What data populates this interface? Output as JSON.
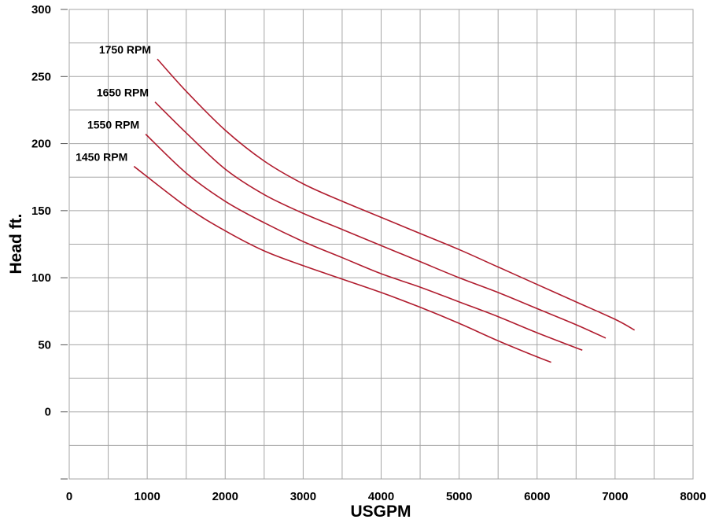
{
  "chart_data": {
    "type": "line",
    "xlabel": "USGPM",
    "ylabel": "Head ft.",
    "xlim": [
      0,
      8000
    ],
    "ylim": [
      -50,
      300
    ],
    "x_ticks": [
      "0",
      "1000",
      "2000",
      "3000",
      "4000",
      "5000",
      "6000",
      "7000",
      "8000"
    ],
    "y_ticks": [
      "0",
      "50",
      "100",
      "150",
      "200",
      "250",
      "300"
    ],
    "grid": true,
    "line_color": "#b01c2e",
    "series": [
      {
        "name": "1750 RPM",
        "x": [
          1130,
          1500,
          2000,
          2500,
          3000,
          3500,
          4000,
          4500,
          5000,
          5500,
          6000,
          6500,
          7000,
          7250
        ],
        "y": [
          263,
          239,
          210,
          187,
          170,
          157,
          145,
          133,
          121,
          108,
          95,
          82,
          69,
          61
        ]
      },
      {
        "name": "1650 RPM",
        "x": [
          1100,
          1500,
          2000,
          2500,
          3000,
          3500,
          4000,
          4500,
          5000,
          5500,
          6000,
          6500,
          6880
        ],
        "y": [
          231,
          208,
          181,
          162,
          148,
          136,
          124,
          112,
          100,
          89,
          77,
          65,
          55
        ]
      },
      {
        "name": "1550 RPM",
        "x": [
          980,
          1500,
          2000,
          2500,
          3000,
          3500,
          4000,
          4500,
          5000,
          5500,
          6000,
          6580
        ],
        "y": [
          207,
          178,
          157,
          141,
          127,
          115,
          103,
          93,
          82,
          71,
          59,
          46
        ]
      },
      {
        "name": "1450 RPM",
        "x": [
          830,
          1500,
          2000,
          2500,
          3000,
          3500,
          4000,
          4500,
          5000,
          5500,
          6000,
          6180
        ],
        "y": [
          183,
          153,
          135,
          120,
          109,
          99,
          89,
          78,
          66,
          53,
          41,
          37
        ]
      }
    ]
  }
}
